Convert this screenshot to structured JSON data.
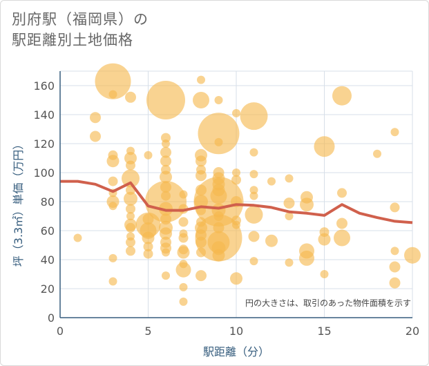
{
  "title_line1": "別府駅（福岡県）の",
  "title_line2": "駅距離別土地価格",
  "chart_data": {
    "type": "scatter",
    "xlabel": "駅距離（分）",
    "ylabel": "坪（3.3㎡）単価（万円）",
    "xlim": [
      0,
      20
    ],
    "ylim": [
      0,
      170
    ],
    "xticks": [
      0,
      5,
      10,
      15,
      20
    ],
    "yticks": [
      0,
      20,
      40,
      60,
      80,
      100,
      120,
      140,
      160
    ],
    "grid": true,
    "note": "円の大きさは、取引のあった物件面積を示す",
    "colors": {
      "bubble": "#f5b84e",
      "line": "#d0604c",
      "grid": "#d7dfe8",
      "axis": "#355c7d"
    },
    "bubbles": [
      {
        "x": 1,
        "y": 55,
        "r": 6
      },
      {
        "x": 2,
        "y": 138,
        "r": 8
      },
      {
        "x": 2,
        "y": 125,
        "r": 8
      },
      {
        "x": 3,
        "y": 163,
        "r": 26
      },
      {
        "x": 3,
        "y": 154,
        "r": 6
      },
      {
        "x": 3,
        "y": 112,
        "r": 7
      },
      {
        "x": 3,
        "y": 108,
        "r": 9
      },
      {
        "x": 3,
        "y": 94,
        "r": 7
      },
      {
        "x": 3,
        "y": 86,
        "r": 6
      },
      {
        "x": 3,
        "y": 80,
        "r": 9
      },
      {
        "x": 3,
        "y": 77,
        "r": 6
      },
      {
        "x": 3,
        "y": 41,
        "r": 6
      },
      {
        "x": 3,
        "y": 25,
        "r": 6
      },
      {
        "x": 4,
        "y": 152,
        "r": 8
      },
      {
        "x": 4,
        "y": 115,
        "r": 6
      },
      {
        "x": 4,
        "y": 110,
        "r": 9
      },
      {
        "x": 4,
        "y": 105,
        "r": 7
      },
      {
        "x": 4,
        "y": 96,
        "r": 13
      },
      {
        "x": 4,
        "y": 88,
        "r": 7
      },
      {
        "x": 4,
        "y": 82,
        "r": 10
      },
      {
        "x": 4,
        "y": 75,
        "r": 7
      },
      {
        "x": 4,
        "y": 70,
        "r": 6
      },
      {
        "x": 4,
        "y": 64,
        "r": 9
      },
      {
        "x": 4,
        "y": 62,
        "r": 7
      },
      {
        "x": 4,
        "y": 56,
        "r": 6
      },
      {
        "x": 4,
        "y": 52,
        "r": 7
      },
      {
        "x": 4,
        "y": 46,
        "r": 7
      },
      {
        "x": 5,
        "y": 112,
        "r": 6
      },
      {
        "x": 5,
        "y": 68,
        "r": 8
      },
      {
        "x": 5,
        "y": 64,
        "r": 18
      },
      {
        "x": 5,
        "y": 60,
        "r": 12
      },
      {
        "x": 5,
        "y": 55,
        "r": 9
      },
      {
        "x": 5,
        "y": 49,
        "r": 7
      },
      {
        "x": 5,
        "y": 44,
        "r": 7
      },
      {
        "x": 6,
        "y": 150,
        "r": 28
      },
      {
        "x": 6,
        "y": 124,
        "r": 7
      },
      {
        "x": 6,
        "y": 120,
        "r": 6
      },
      {
        "x": 6,
        "y": 114,
        "r": 8
      },
      {
        "x": 6,
        "y": 108,
        "r": 8
      },
      {
        "x": 6,
        "y": 102,
        "r": 7
      },
      {
        "x": 6,
        "y": 97,
        "r": 9
      },
      {
        "x": 6,
        "y": 90,
        "r": 8
      },
      {
        "x": 6,
        "y": 84,
        "r": 7
      },
      {
        "x": 6,
        "y": 80,
        "r": 30
      },
      {
        "x": 6,
        "y": 75,
        "r": 10
      },
      {
        "x": 6,
        "y": 68,
        "r": 8
      },
      {
        "x": 6,
        "y": 62,
        "r": 10
      },
      {
        "x": 6,
        "y": 58,
        "r": 9
      },
      {
        "x": 6,
        "y": 52,
        "r": 8
      },
      {
        "x": 6,
        "y": 48,
        "r": 8
      },
      {
        "x": 6,
        "y": 45,
        "r": 6
      },
      {
        "x": 6,
        "y": 29,
        "r": 6
      },
      {
        "x": 7,
        "y": 85,
        "r": 6
      },
      {
        "x": 7,
        "y": 75,
        "r": 7
      },
      {
        "x": 7,
        "y": 66,
        "r": 7
      },
      {
        "x": 7,
        "y": 58,
        "r": 6
      },
      {
        "x": 7,
        "y": 55,
        "r": 7
      },
      {
        "x": 7,
        "y": 47,
        "r": 7
      },
      {
        "x": 7,
        "y": 45,
        "r": 9
      },
      {
        "x": 7,
        "y": 37,
        "r": 6
      },
      {
        "x": 7,
        "y": 33,
        "r": 11
      },
      {
        "x": 7,
        "y": 21,
        "r": 6
      },
      {
        "x": 7,
        "y": 11,
        "r": 6
      },
      {
        "x": 8,
        "y": 164,
        "r": 6
      },
      {
        "x": 8,
        "y": 150,
        "r": 12
      },
      {
        "x": 8,
        "y": 112,
        "r": 9
      },
      {
        "x": 8,
        "y": 108,
        "r": 8
      },
      {
        "x": 8,
        "y": 102,
        "r": 7
      },
      {
        "x": 8,
        "y": 98,
        "r": 8
      },
      {
        "x": 8,
        "y": 88,
        "r": 8
      },
      {
        "x": 8,
        "y": 80,
        "r": 10
      },
      {
        "x": 8,
        "y": 74,
        "r": 7
      },
      {
        "x": 8,
        "y": 66,
        "r": 7
      },
      {
        "x": 8,
        "y": 62,
        "r": 9
      },
      {
        "x": 8,
        "y": 57,
        "r": 8
      },
      {
        "x": 8,
        "y": 52,
        "r": 8
      },
      {
        "x": 8,
        "y": 45,
        "r": 7
      },
      {
        "x": 8,
        "y": 29,
        "r": 8
      },
      {
        "x": 9,
        "y": 150,
        "r": 6
      },
      {
        "x": 9,
        "y": 127,
        "r": 30
      },
      {
        "x": 9,
        "y": 121,
        "r": 6
      },
      {
        "x": 9,
        "y": 100,
        "r": 8
      },
      {
        "x": 9,
        "y": 96,
        "r": 9
      },
      {
        "x": 9,
        "y": 92,
        "r": 9
      },
      {
        "x": 9,
        "y": 88,
        "r": 9
      },
      {
        "x": 9,
        "y": 84,
        "r": 12
      },
      {
        "x": 9,
        "y": 80,
        "r": 36
      },
      {
        "x": 9,
        "y": 74,
        "r": 10
      },
      {
        "x": 9,
        "y": 70,
        "r": 7
      },
      {
        "x": 9,
        "y": 62,
        "r": 8
      },
      {
        "x": 9,
        "y": 55,
        "r": 34
      },
      {
        "x": 9,
        "y": 52,
        "r": 16
      },
      {
        "x": 9,
        "y": 48,
        "r": 10
      },
      {
        "x": 9,
        "y": 43,
        "r": 9
      },
      {
        "x": 10,
        "y": 141,
        "r": 6
      },
      {
        "x": 10,
        "y": 100,
        "r": 6
      },
      {
        "x": 10,
        "y": 95,
        "r": 7
      },
      {
        "x": 10,
        "y": 80,
        "r": 8
      },
      {
        "x": 10,
        "y": 67,
        "r": 7
      },
      {
        "x": 10,
        "y": 64,
        "r": 6
      },
      {
        "x": 10,
        "y": 27,
        "r": 9
      },
      {
        "x": 11,
        "y": 139,
        "r": 20
      },
      {
        "x": 11,
        "y": 114,
        "r": 6
      },
      {
        "x": 11,
        "y": 99,
        "r": 6
      },
      {
        "x": 11,
        "y": 88,
        "r": 6
      },
      {
        "x": 11,
        "y": 84,
        "r": 6
      },
      {
        "x": 11,
        "y": 71,
        "r": 13
      },
      {
        "x": 11,
        "y": 56,
        "r": 8
      },
      {
        "x": 11,
        "y": 39,
        "r": 6
      },
      {
        "x": 12,
        "y": 94,
        "r": 6
      },
      {
        "x": 12,
        "y": 53,
        "r": 9
      },
      {
        "x": 13,
        "y": 96,
        "r": 6
      },
      {
        "x": 13,
        "y": 79,
        "r": 8
      },
      {
        "x": 13,
        "y": 70,
        "r": 6
      },
      {
        "x": 13,
        "y": 38,
        "r": 6
      },
      {
        "x": 14,
        "y": 83,
        "r": 9
      },
      {
        "x": 14,
        "y": 78,
        "r": 10
      },
      {
        "x": 14,
        "y": 46,
        "r": 11
      },
      {
        "x": 14,
        "y": 41,
        "r": 11
      },
      {
        "x": 15,
        "y": 118,
        "r": 15
      },
      {
        "x": 15,
        "y": 59,
        "r": 7
      },
      {
        "x": 15,
        "y": 54,
        "r": 9
      },
      {
        "x": 15,
        "y": 30,
        "r": 6
      },
      {
        "x": 16,
        "y": 153,
        "r": 14
      },
      {
        "x": 16,
        "y": 86,
        "r": 7
      },
      {
        "x": 16,
        "y": 65,
        "r": 8
      },
      {
        "x": 16,
        "y": 55,
        "r": 12
      },
      {
        "x": 18,
        "y": 113,
        "r": 6
      },
      {
        "x": 19,
        "y": 128,
        "r": 6
      },
      {
        "x": 19,
        "y": 76,
        "r": 7
      },
      {
        "x": 19,
        "y": 46,
        "r": 6
      },
      {
        "x": 19,
        "y": 35,
        "r": 8
      },
      {
        "x": 19,
        "y": 24,
        "r": 8
      },
      {
        "x": 20,
        "y": 43,
        "r": 12
      }
    ],
    "trend": [
      {
        "x": 0,
        "y": 94
      },
      {
        "x": 1,
        "y": 94
      },
      {
        "x": 2,
        "y": 92
      },
      {
        "x": 3,
        "y": 87
      },
      {
        "x": 4,
        "y": 93
      },
      {
        "x": 5,
        "y": 77
      },
      {
        "x": 6,
        "y": 74
      },
      {
        "x": 7,
        "y": 74
      },
      {
        "x": 8,
        "y": 76.5
      },
      {
        "x": 9,
        "y": 75.5
      },
      {
        "x": 10,
        "y": 78
      },
      {
        "x": 11,
        "y": 77.5
      },
      {
        "x": 12,
        "y": 76
      },
      {
        "x": 13,
        "y": 73
      },
      {
        "x": 14,
        "y": 72
      },
      {
        "x": 15,
        "y": 70.5
      },
      {
        "x": 16,
        "y": 78
      },
      {
        "x": 17,
        "y": 72
      },
      {
        "x": 18,
        "y": 69
      },
      {
        "x": 19,
        "y": 66.5
      },
      {
        "x": 20,
        "y": 65.5
      }
    ]
  }
}
